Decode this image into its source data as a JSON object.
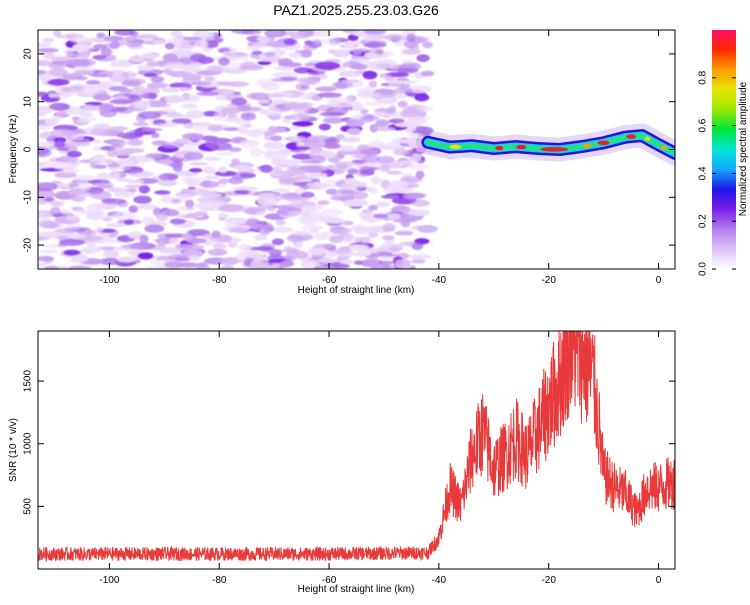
{
  "figure_title": "PAZ1.2025.255.23.03.G26",
  "colors": {
    "snr_line": "#e83a3a",
    "frame": "#000000",
    "spectro_noise_light": "#d8b8f2",
    "spectro_noise_dark": "#7a1ee8",
    "signal_cyan": "#12d4e6",
    "signal_red": "#f21a1a"
  },
  "chart_data": [
    {
      "type": "heatmap",
      "name": "spectrogram",
      "xlabel": "Height of straight line (km)",
      "ylabel": "Frequency (Hz)",
      "xlim": [
        -113,
        3
      ],
      "ylim": [
        -25,
        25
      ],
      "xticks": [
        -100,
        -80,
        -60,
        -40,
        -20,
        0
      ],
      "yticks": [
        -20,
        -10,
        0,
        10,
        20
      ],
      "noise_region_end_km": -42,
      "signal_track": {
        "x": [
          -42,
          -38,
          -34,
          -30,
          -26,
          -22,
          -18,
          -14,
          -10,
          -6,
          -3,
          0,
          3
        ],
        "freq": [
          1.5,
          0.5,
          0.8,
          0.2,
          0.6,
          0.2,
          0.0,
          0.6,
          1.4,
          2.6,
          2.9,
          1.0,
          -0.8
        ]
      },
      "colorbar": {
        "label": "Normalized spectral amplitude",
        "range": [
          0.0,
          1.0
        ],
        "ticks": [
          0.0,
          0.2,
          0.4,
          0.6,
          0.8
        ],
        "tick_labels": [
          "0.0",
          "0.2",
          "0.4",
          "0.6",
          "0.8"
        ],
        "colormap": [
          "#ffffff",
          "#dcc2f5",
          "#b57ef0",
          "#7a1ee8",
          "#1e14e6",
          "#14a8ff",
          "#00e6d2",
          "#00e639",
          "#9be600",
          "#e6e600",
          "#ff9c00",
          "#ff2a00",
          "#ff0a66"
        ]
      }
    },
    {
      "type": "line",
      "name": "snr",
      "xlabel": "Height of straight line (km)",
      "ylabel": "SNR (10 * v/v)",
      "xlim": [
        -113,
        3
      ],
      "ylim": [
        0,
        1900
      ],
      "xticks": [
        -100,
        -80,
        -60,
        -40,
        -20,
        0
      ],
      "yticks": [
        500,
        1000,
        1500
      ],
      "envelope": {
        "x": [
          -113,
          -60,
          -42,
          -40,
          -38,
          -36,
          -34,
          -32,
          -30,
          -28,
          -26,
          -24,
          -22,
          -20,
          -18,
          -16,
          -14,
          -12,
          -11,
          -10,
          -8,
          -6,
          -4,
          -2,
          0,
          3
        ],
        "y": [
          120,
          120,
          130,
          250,
          650,
          500,
          900,
          1100,
          800,
          900,
          1050,
          900,
          1100,
          1300,
          1500,
          1820,
          1700,
          1550,
          1200,
          750,
          650,
          600,
          450,
          650,
          650,
          700
        ]
      }
    }
  ]
}
